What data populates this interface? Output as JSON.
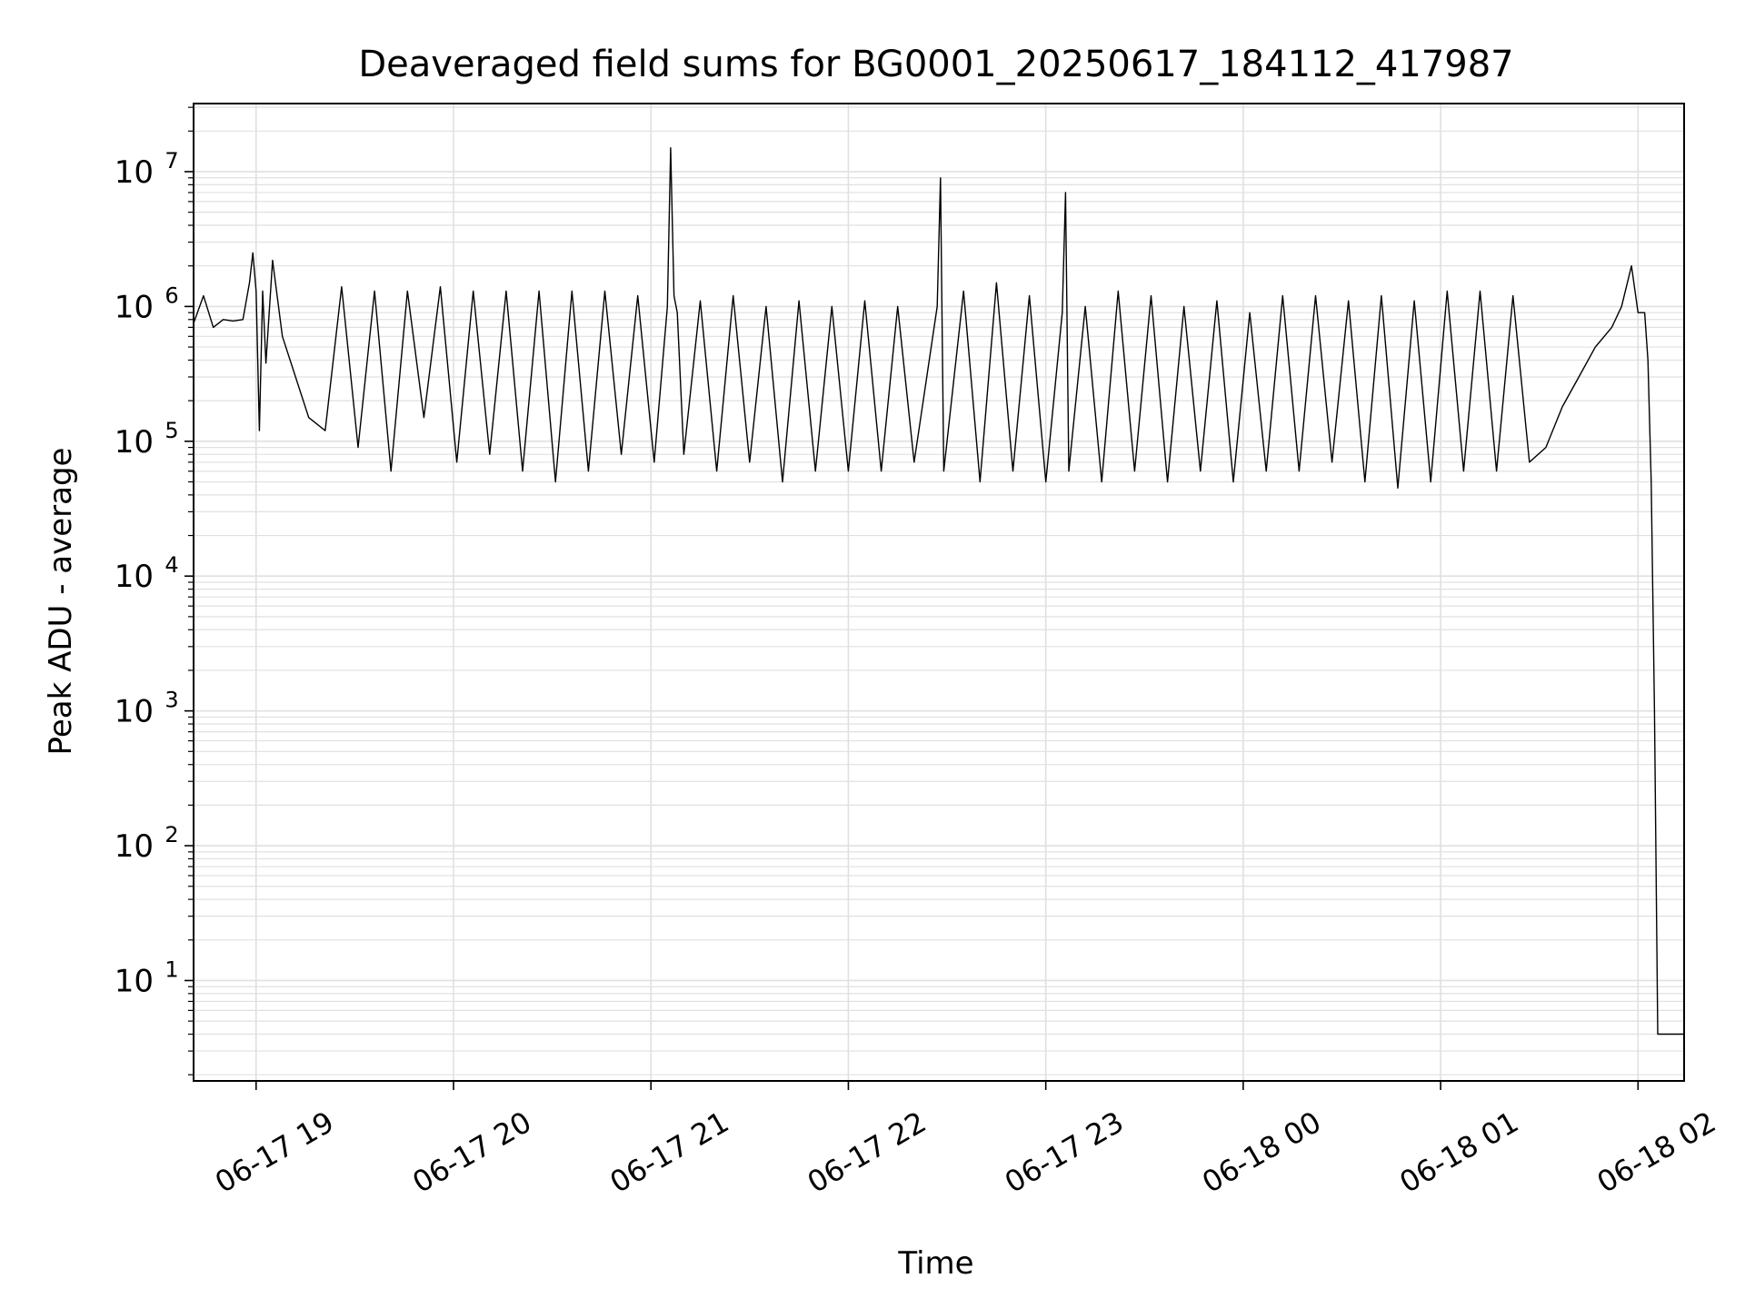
{
  "chart_data": {
    "type": "line",
    "title": "Deaveraged field sums for BG0001_20250617_184112_417987",
    "xlabel": "Time",
    "ylabel": "Peak ADU - average",
    "yscale": "log",
    "ylim": [
      1.8,
      32000000
    ],
    "xlim": [
      "2025-06-17 18:41",
      "2025-06-18 02:14"
    ],
    "grid": true,
    "line_color": "#000000",
    "grid_color": "#e0e0e0",
    "x_ticks": [
      {
        "value": "2025-06-17 19:00",
        "label": "06-17 19"
      },
      {
        "value": "2025-06-17 20:00",
        "label": "06-17 20"
      },
      {
        "value": "2025-06-17 21:00",
        "label": "06-17 21"
      },
      {
        "value": "2025-06-17 22:00",
        "label": "06-17 22"
      },
      {
        "value": "2025-06-17 23:00",
        "label": "06-17 23"
      },
      {
        "value": "2025-06-18 00:00",
        "label": "06-18 00"
      },
      {
        "value": "2025-06-18 01:00",
        "label": "06-18 01"
      },
      {
        "value": "2025-06-18 02:00",
        "label": "06-18 02"
      }
    ],
    "y_ticks": [
      {
        "value": 10,
        "base": "10",
        "exp": "1"
      },
      {
        "value": 100,
        "base": "10",
        "exp": "2"
      },
      {
        "value": 1000,
        "base": "10",
        "exp": "3"
      },
      {
        "value": 10000,
        "base": "10",
        "exp": "4"
      },
      {
        "value": 100000,
        "base": "10",
        "exp": "5"
      },
      {
        "value": 1000000,
        "base": "10",
        "exp": "6"
      },
      {
        "value": 10000000,
        "base": "10",
        "exp": "7"
      }
    ],
    "series": [
      {
        "x": [
          "2025-06-17 18:41",
          "2025-06-17 18:44",
          "2025-06-17 18:47",
          "2025-06-17 18:50",
          "2025-06-17 18:53",
          "2025-06-17 18:56",
          "2025-06-17 18:58",
          "2025-06-17 18:59",
          "2025-06-17 19:00",
          "2025-06-17 19:01",
          "2025-06-17 19:02",
          "2025-06-17 19:03",
          "2025-06-17 19:05",
          "2025-06-17 19:08",
          "2025-06-17 19:12",
          "2025-06-17 19:16",
          "2025-06-17 19:21",
          "2025-06-17 19:26",
          "2025-06-17 19:31",
          "2025-06-17 19:36",
          "2025-06-17 19:41",
          "2025-06-17 19:46",
          "2025-06-17 19:51",
          "2025-06-17 19:56",
          "2025-06-17 20:01",
          "2025-06-17 20:06",
          "2025-06-17 20:11",
          "2025-06-17 20:16",
          "2025-06-17 20:21",
          "2025-06-17 20:26",
          "2025-06-17 20:31",
          "2025-06-17 20:36",
          "2025-06-17 20:41",
          "2025-06-17 20:46",
          "2025-06-17 20:51",
          "2025-06-17 20:56",
          "2025-06-17 21:01",
          "2025-06-17 21:05",
          "2025-06-17 21:06",
          "2025-06-17 21:07",
          "2025-06-17 21:08",
          "2025-06-17 21:10",
          "2025-06-17 21:15",
          "2025-06-17 21:20",
          "2025-06-17 21:25",
          "2025-06-17 21:30",
          "2025-06-17 21:35",
          "2025-06-17 21:40",
          "2025-06-17 21:45",
          "2025-06-17 21:50",
          "2025-06-17 21:55",
          "2025-06-17 22:00",
          "2025-06-17 22:05",
          "2025-06-17 22:10",
          "2025-06-17 22:15",
          "2025-06-17 22:20",
          "2025-06-17 22:27",
          "2025-06-17 22:28",
          "2025-06-17 22:29",
          "2025-06-17 22:35",
          "2025-06-17 22:40",
          "2025-06-17 22:45",
          "2025-06-17 22:50",
          "2025-06-17 22:55",
          "2025-06-17 23:00",
          "2025-06-17 23:05",
          "2025-06-17 23:06",
          "2025-06-17 23:07",
          "2025-06-17 23:12",
          "2025-06-17 23:17",
          "2025-06-17 23:22",
          "2025-06-17 23:27",
          "2025-06-17 23:32",
          "2025-06-17 23:37",
          "2025-06-17 23:42",
          "2025-06-17 23:47",
          "2025-06-17 23:52",
          "2025-06-17 23:57",
          "2025-06-18 00:02",
          "2025-06-18 00:07",
          "2025-06-18 00:12",
          "2025-06-18 00:17",
          "2025-06-18 00:22",
          "2025-06-18 00:27",
          "2025-06-18 00:32",
          "2025-06-18 00:37",
          "2025-06-18 00:42",
          "2025-06-18 00:47",
          "2025-06-18 00:52",
          "2025-06-18 00:57",
          "2025-06-18 01:02",
          "2025-06-18 01:07",
          "2025-06-18 01:12",
          "2025-06-18 01:17",
          "2025-06-18 01:22",
          "2025-06-18 01:27",
          "2025-06-18 01:32",
          "2025-06-18 01:37",
          "2025-06-18 01:42",
          "2025-06-18 01:47",
          "2025-06-18 01:52",
          "2025-06-18 01:55",
          "2025-06-18 01:58",
          "2025-06-18 02:00",
          "2025-06-18 02:02",
          "2025-06-18 02:03",
          "2025-06-18 02:04",
          "2025-06-18 02:05",
          "2025-06-18 02:06",
          "2025-06-18 02:14"
        ],
        "y": [
          750000,
          1200000,
          700000,
          800000,
          780000,
          800000,
          1500000,
          2500000,
          1300000,
          120000,
          1300000,
          380000,
          2200000,
          600000,
          300000,
          150000,
          120000,
          1400000,
          90000,
          1300000,
          60000,
          1300000,
          150000,
          1400000,
          70000,
          1300000,
          80000,
          1300000,
          60000,
          1300000,
          50000,
          1300000,
          60000,
          1300000,
          80000,
          1200000,
          70000,
          1000000,
          15000000,
          1200000,
          900000,
          80000,
          1100000,
          60000,
          1200000,
          70000,
          1000000,
          50000,
          1100000,
          60000,
          1000000,
          60000,
          1100000,
          60000,
          1000000,
          70000,
          1000000,
          9000000,
          60000,
          1300000,
          50000,
          1500000,
          60000,
          1200000,
          50000,
          900000,
          7000000,
          60000,
          1000000,
          50000,
          1300000,
          60000,
          1200000,
          50000,
          1000000,
          60000,
          1100000,
          50000,
          900000,
          60000,
          1200000,
          60000,
          1200000,
          70000,
          1100000,
          50000,
          1200000,
          45000,
          1100000,
          50000,
          1300000,
          60000,
          1300000,
          60000,
          1200000,
          70000,
          90000,
          180000,
          300000,
          500000,
          700000,
          1000000,
          2000000,
          900000,
          900000,
          400000,
          50000,
          1000,
          4,
          4
        ]
      }
    ]
  }
}
